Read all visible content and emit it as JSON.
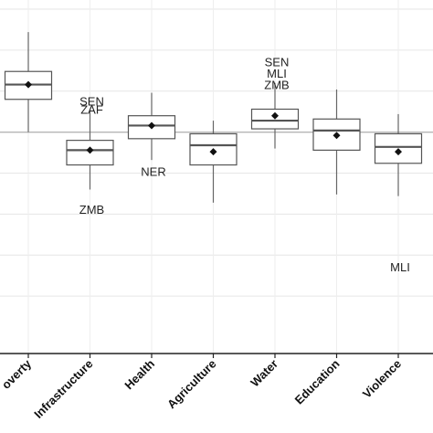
{
  "chart_data": {
    "type": "boxplot",
    "categories": [
      "overty",
      "Infrastructure",
      "Health",
      "Agriculture",
      "Water",
      "Education",
      "Violence"
    ],
    "ylim": [
      -1.35,
      0.75
    ],
    "reference_line": 0,
    "grid": true,
    "boxes": [
      {
        "category": "overty",
        "whisker_low": 0.0,
        "q1": 0.2,
        "median": 0.29,
        "q3": 0.37,
        "whisker_high": 0.61,
        "mean": 0.29
      },
      {
        "category": "Infrastructure",
        "whisker_low": -0.35,
        "q1": -0.2,
        "median": -0.11,
        "q3": -0.05,
        "whisker_high": 0.13,
        "mean": -0.11
      },
      {
        "category": "Health",
        "whisker_low": -0.17,
        "q1": -0.04,
        "median": 0.04,
        "q3": 0.1,
        "whisker_high": 0.24,
        "mean": 0.04
      },
      {
        "category": "Agriculture",
        "whisker_low": -0.43,
        "q1": -0.2,
        "median": -0.08,
        "q3": -0.01,
        "whisker_high": 0.07,
        "mean": -0.12
      },
      {
        "category": "Water",
        "whisker_low": -0.1,
        "q1": 0.02,
        "median": 0.07,
        "q3": 0.14,
        "whisker_high": 0.3,
        "mean": 0.1
      },
      {
        "category": "Education",
        "whisker_low": -0.38,
        "q1": -0.11,
        "median": 0.01,
        "q3": 0.08,
        "whisker_high": 0.26,
        "mean": -0.02
      },
      {
        "category": "Violence",
        "whisker_low": -0.39,
        "q1": -0.19,
        "median": -0.09,
        "q3": -0.01,
        "whisker_high": 0.11,
        "mean": -0.12
      }
    ],
    "annotations": [
      {
        "text": "SEN",
        "category": "Infrastructure",
        "y": 0.19
      },
      {
        "text": "ZAF",
        "category": "Infrastructure",
        "y": 0.14
      },
      {
        "text": "ZMB",
        "category": "Infrastructure",
        "y": -0.47
      },
      {
        "text": "NER",
        "category": "Health",
        "y": -0.24
      },
      {
        "text": "SEN",
        "category": "Water",
        "y": 0.43
      },
      {
        "text": "MLI",
        "category": "Water",
        "y": 0.36
      },
      {
        "text": "ZMB",
        "category": "Water",
        "y": 0.29
      },
      {
        "text": "MLI",
        "category": "Violence",
        "y": -0.82
      }
    ]
  }
}
